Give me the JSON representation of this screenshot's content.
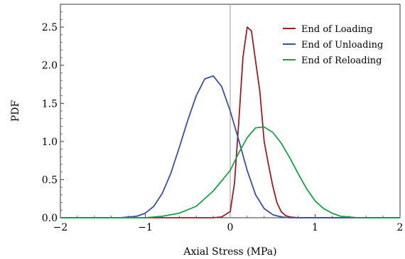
{
  "chart_data": {
    "type": "line",
    "title": "",
    "xlabel": "Axial Stress (MPa)",
    "ylabel": "PDF",
    "xlim": [
      -2,
      2
    ],
    "ylim": [
      0,
      2.8
    ],
    "xticks": [
      {
        "value": -2,
        "label": "−2"
      },
      {
        "value": -1,
        "label": "−1"
      },
      {
        "value": 0,
        "label": "0"
      },
      {
        "value": 1,
        "label": "1"
      },
      {
        "value": 2,
        "label": "2"
      }
    ],
    "yticks": [
      {
        "value": 0,
        "label": "0.0"
      },
      {
        "value": 0.5,
        "label": "0.5"
      },
      {
        "value": 1,
        "label": "1.0"
      },
      {
        "value": 1.5,
        "label": "1.5"
      },
      {
        "value": 2,
        "label": "2.0"
      },
      {
        "value": 2.5,
        "label": "2.5"
      }
    ],
    "grid": false,
    "vertical_reference_line": 0,
    "legend_position": "top-right",
    "series": [
      {
        "name": "End of Loading",
        "color": "#9b1c24",
        "points": [
          [
            -2,
            0
          ],
          [
            -0.2,
            0
          ],
          [
            -0.1,
            0.01
          ],
          [
            0,
            0.08
          ],
          [
            0.05,
            0.45
          ],
          [
            0.1,
            1.25
          ],
          [
            0.15,
            2.1
          ],
          [
            0.2,
            2.5
          ],
          [
            0.25,
            2.45
          ],
          [
            0.3,
            2.05
          ],
          [
            0.35,
            1.65
          ],
          [
            0.4,
            1.0
          ],
          [
            0.45,
            0.7
          ],
          [
            0.5,
            0.42
          ],
          [
            0.55,
            0.2
          ],
          [
            0.6,
            0.08
          ],
          [
            0.65,
            0.03
          ],
          [
            0.7,
            0.01
          ],
          [
            0.8,
            0
          ],
          [
            2,
            0
          ]
        ]
      },
      {
        "name": "End of Unloading",
        "color": "#3b4fa0",
        "points": [
          [
            -2,
            0
          ],
          [
            -1.3,
            0
          ],
          [
            -1.1,
            0.02
          ],
          [
            -1,
            0.06
          ],
          [
            -0.9,
            0.15
          ],
          [
            -0.8,
            0.32
          ],
          [
            -0.7,
            0.58
          ],
          [
            -0.6,
            0.92
          ],
          [
            -0.5,
            1.28
          ],
          [
            -0.4,
            1.6
          ],
          [
            -0.3,
            1.82
          ],
          [
            -0.2,
            1.86
          ],
          [
            -0.1,
            1.72
          ],
          [
            0,
            1.4
          ],
          [
            0.1,
            1.02
          ],
          [
            0.2,
            0.62
          ],
          [
            0.3,
            0.3
          ],
          [
            0.4,
            0.12
          ],
          [
            0.5,
            0.04
          ],
          [
            0.6,
            0.01
          ],
          [
            0.7,
            0
          ],
          [
            2,
            0
          ]
        ]
      },
      {
        "name": "End of Reloading",
        "color": "#17a047",
        "points": [
          [
            -2,
            0
          ],
          [
            -1,
            0
          ],
          [
            -0.8,
            0.02
          ],
          [
            -0.6,
            0.06
          ],
          [
            -0.4,
            0.15
          ],
          [
            -0.2,
            0.35
          ],
          [
            0,
            0.62
          ],
          [
            0.1,
            0.85
          ],
          [
            0.2,
            1.05
          ],
          [
            0.3,
            1.18
          ],
          [
            0.4,
            1.19
          ],
          [
            0.5,
            1.12
          ],
          [
            0.6,
            0.98
          ],
          [
            0.7,
            0.79
          ],
          [
            0.8,
            0.58
          ],
          [
            0.9,
            0.38
          ],
          [
            1,
            0.22
          ],
          [
            1.1,
            0.12
          ],
          [
            1.2,
            0.06
          ],
          [
            1.3,
            0.02
          ],
          [
            1.4,
            0.01
          ],
          [
            1.5,
            0
          ],
          [
            2,
            0
          ]
        ]
      }
    ]
  }
}
